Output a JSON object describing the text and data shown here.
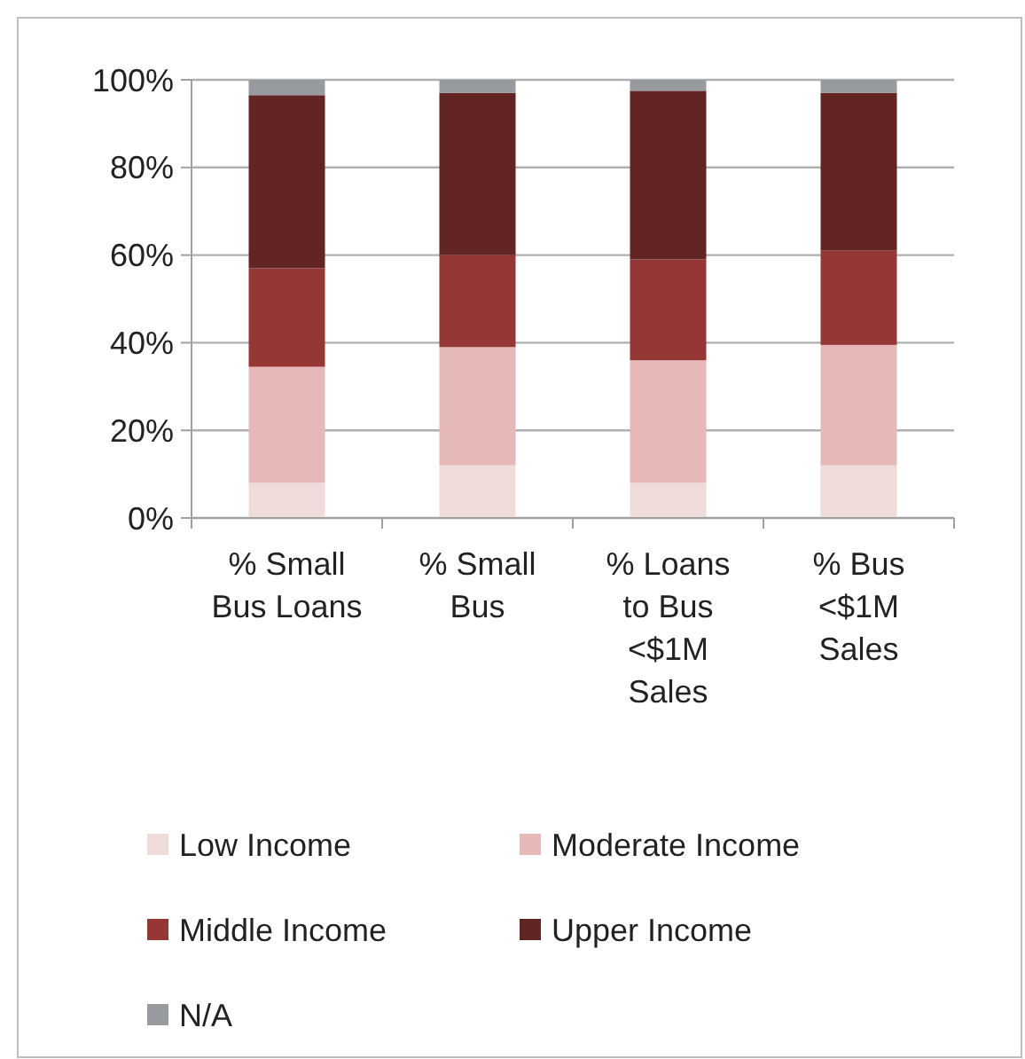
{
  "chart_data": {
    "type": "bar",
    "stacked": true,
    "categories": [
      "% Small Bus Loans",
      "% Small Bus",
      "% Loans to Bus <$1M Sales",
      "% Bus <$1M Sales"
    ],
    "series": [
      {
        "name": "Low Income",
        "color": "#f0dbdb",
        "values": [
          8,
          12,
          8,
          12
        ]
      },
      {
        "name": "Moderate Income",
        "color": "#e6b8b8",
        "values": [
          26.5,
          27,
          28,
          27.5
        ]
      },
      {
        "name": "Middle Income",
        "color": "#953735",
        "values": [
          22.5,
          21,
          23,
          21.5
        ]
      },
      {
        "name": "Upper Income",
        "color": "#632523",
        "values": [
          39.5,
          37,
          38.5,
          36
        ]
      },
      {
        "name": "N/A",
        "color": "#979a9e",
        "values": [
          3.5,
          3,
          2.5,
          3
        ]
      }
    ],
    "ylim": [
      0,
      100
    ],
    "yticks": [
      {
        "value": 0,
        "label": "0%"
      },
      {
        "value": 20,
        "label": "20%"
      },
      {
        "value": 40,
        "label": "40%"
      },
      {
        "value": 60,
        "label": "60%"
      },
      {
        "value": 80,
        "label": "80%"
      },
      {
        "value": 100,
        "label": "100%"
      }
    ],
    "grid": "y",
    "legend": "bottom"
  }
}
